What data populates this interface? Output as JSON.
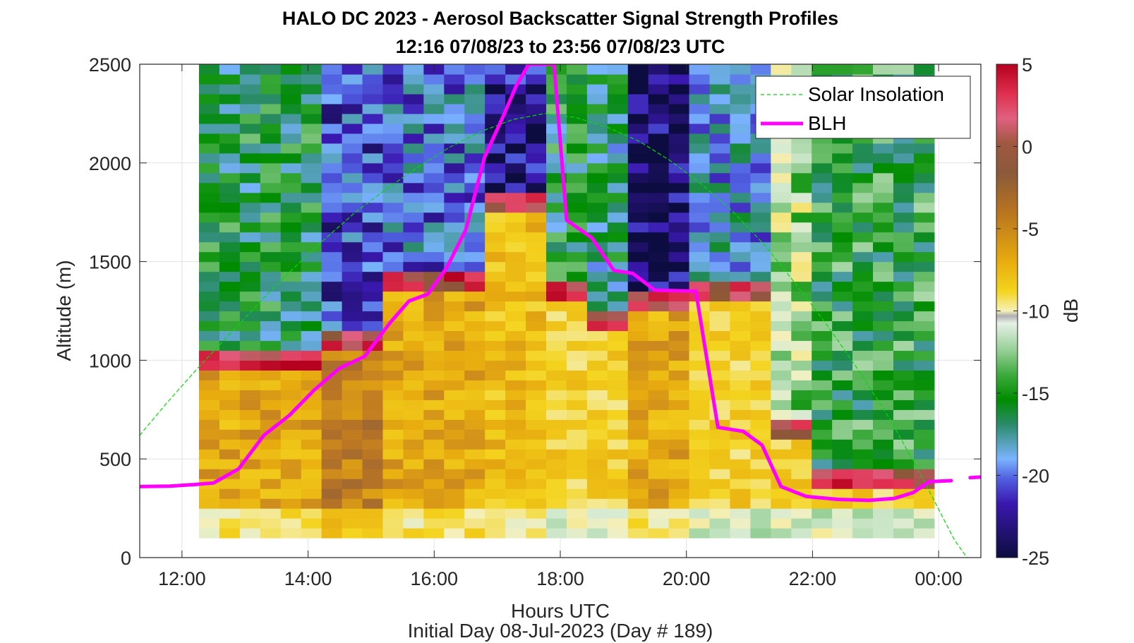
{
  "chart_data": {
    "type": "heatmap",
    "title": "HALO DC 2023 - Aerosol Backscatter Signal Strength Profiles",
    "subtitle": "12:16 07/08/23 to 23:56 07/08/23  UTC",
    "xlabel": "Hours UTC",
    "xlabel2": "Initial Day 08-Jul-2023 (Day # 189)",
    "ylabel": "Altitude (m)",
    "xlim": [
      11.33,
      24.67
    ],
    "ylim": [
      0,
      2500
    ],
    "x_ticks": [
      12,
      14,
      16,
      18,
      20,
      22,
      24
    ],
    "x_tick_labels": [
      "12:00",
      "14:00",
      "16:00",
      "18:00",
      "20:00",
      "22:00",
      "00:00"
    ],
    "y_ticks": [
      0,
      500,
      1000,
      1500,
      2000,
      2500
    ],
    "y_tick_labels": [
      "0",
      "500",
      "1000",
      "1500",
      "2000",
      "2500"
    ],
    "grid": true,
    "legend_position": "top-right",
    "colorbar": {
      "label": "dB",
      "range": [
        -25,
        5
      ],
      "ticks": [
        5,
        0,
        -5,
        -10,
        -15,
        -20,
        -25
      ],
      "tick_labels": [
        "5",
        "0",
        "-5",
        "-10",
        "-15",
        "-20",
        "-25"
      ]
    },
    "heatmap": {
      "time_start": 12.27,
      "time_end": 23.93,
      "altitude_start": 100,
      "altitude_end": 2500,
      "columns": 36,
      "rows": 48,
      "feature_bands": [
        {
          "start": 12.27,
          "end": 14.2,
          "layer_top": 950,
          "layer_dB": -6,
          "above_dB": -16
        },
        {
          "start": 14.2,
          "end": 15.2,
          "layer_top": 1050,
          "layer_dB": -4,
          "above_dB": -21
        },
        {
          "start": 15.2,
          "end": 16.7,
          "layer_top": 1350,
          "layer_dB": -6,
          "above_dB": -20
        },
        {
          "start": 16.7,
          "end": 17.8,
          "layer_top": 1750,
          "layer_dB": -7,
          "above_dB": -23
        },
        {
          "start": 17.8,
          "end": 18.4,
          "layer_top": 1300,
          "layer_dB": -8,
          "above_dB": -16
        },
        {
          "start": 18.4,
          "end": 19.0,
          "layer_top": 1150,
          "layer_dB": -8,
          "above_dB": -17
        },
        {
          "start": 19.0,
          "end": 20.2,
          "layer_top": 1250,
          "layer_dB": -6,
          "above_dB": -24
        },
        {
          "start": 20.2,
          "end": 21.3,
          "layer_top": 1300,
          "layer_dB": -8,
          "above_dB": -19
        },
        {
          "start": 21.3,
          "end": 22.1,
          "layer_top": 600,
          "layer_dB": -8,
          "above_dB": -12
        },
        {
          "start": 22.1,
          "end": 23.93,
          "layer_top": 350,
          "layer_dB": -8,
          "above_dB": -15
        }
      ]
    },
    "series": [
      {
        "name": "Solar Insolation",
        "style": "dashed",
        "color": "#00dd00",
        "x": [
          11.33,
          11.75,
          12.25,
          12.75,
          13.25,
          13.75,
          14.25,
          14.75,
          15.25,
          15.75,
          16.25,
          16.75,
          17.25,
          17.75,
          18.25,
          18.75,
          19.25,
          19.75,
          20.25,
          20.75,
          21.25,
          21.75,
          22.25,
          22.75,
          23.25,
          23.75,
          24.25,
          24.45
        ],
        "y": [
          620,
          780,
          960,
          1130,
          1300,
          1460,
          1610,
          1750,
          1870,
          1980,
          2080,
          2160,
          2220,
          2250,
          2230,
          2180,
          2110,
          2010,
          1890,
          1750,
          1580,
          1380,
          1170,
          940,
          690,
          400,
          90,
          0
        ]
      },
      {
        "name": "BLH",
        "style": "solid",
        "color": "#ff00ff",
        "x": [
          11.33,
          11.8,
          12.2,
          12.5,
          12.9,
          13.3,
          13.7,
          14.1,
          14.5,
          14.9,
          15.3,
          15.6,
          15.9,
          16.2,
          16.5,
          16.8,
          17.1,
          17.3,
          17.5,
          17.75,
          17.9,
          18.1,
          18.5,
          18.85,
          19.15,
          19.5,
          20.15,
          20.5,
          20.9,
          21.2,
          21.5,
          21.9,
          22.4,
          22.9,
          23.3,
          23.6,
          23.85,
          24.2
        ],
        "y": [
          360,
          362,
          370,
          378,
          450,
          620,
          720,
          850,
          960,
          1020,
          1190,
          1300,
          1335,
          1470,
          1660,
          2030,
          2240,
          2390,
          2500,
          2500,
          2500,
          1710,
          1620,
          1455,
          1440,
          1355,
          1350,
          660,
          640,
          570,
          360,
          310,
          295,
          290,
          300,
          330,
          385,
          390
        ]
      },
      {
        "name": "",
        "style": "solid",
        "color": "#ff00ff",
        "x": [
          24.5,
          24.67
        ],
        "y": [
          405,
          408
        ]
      }
    ]
  }
}
